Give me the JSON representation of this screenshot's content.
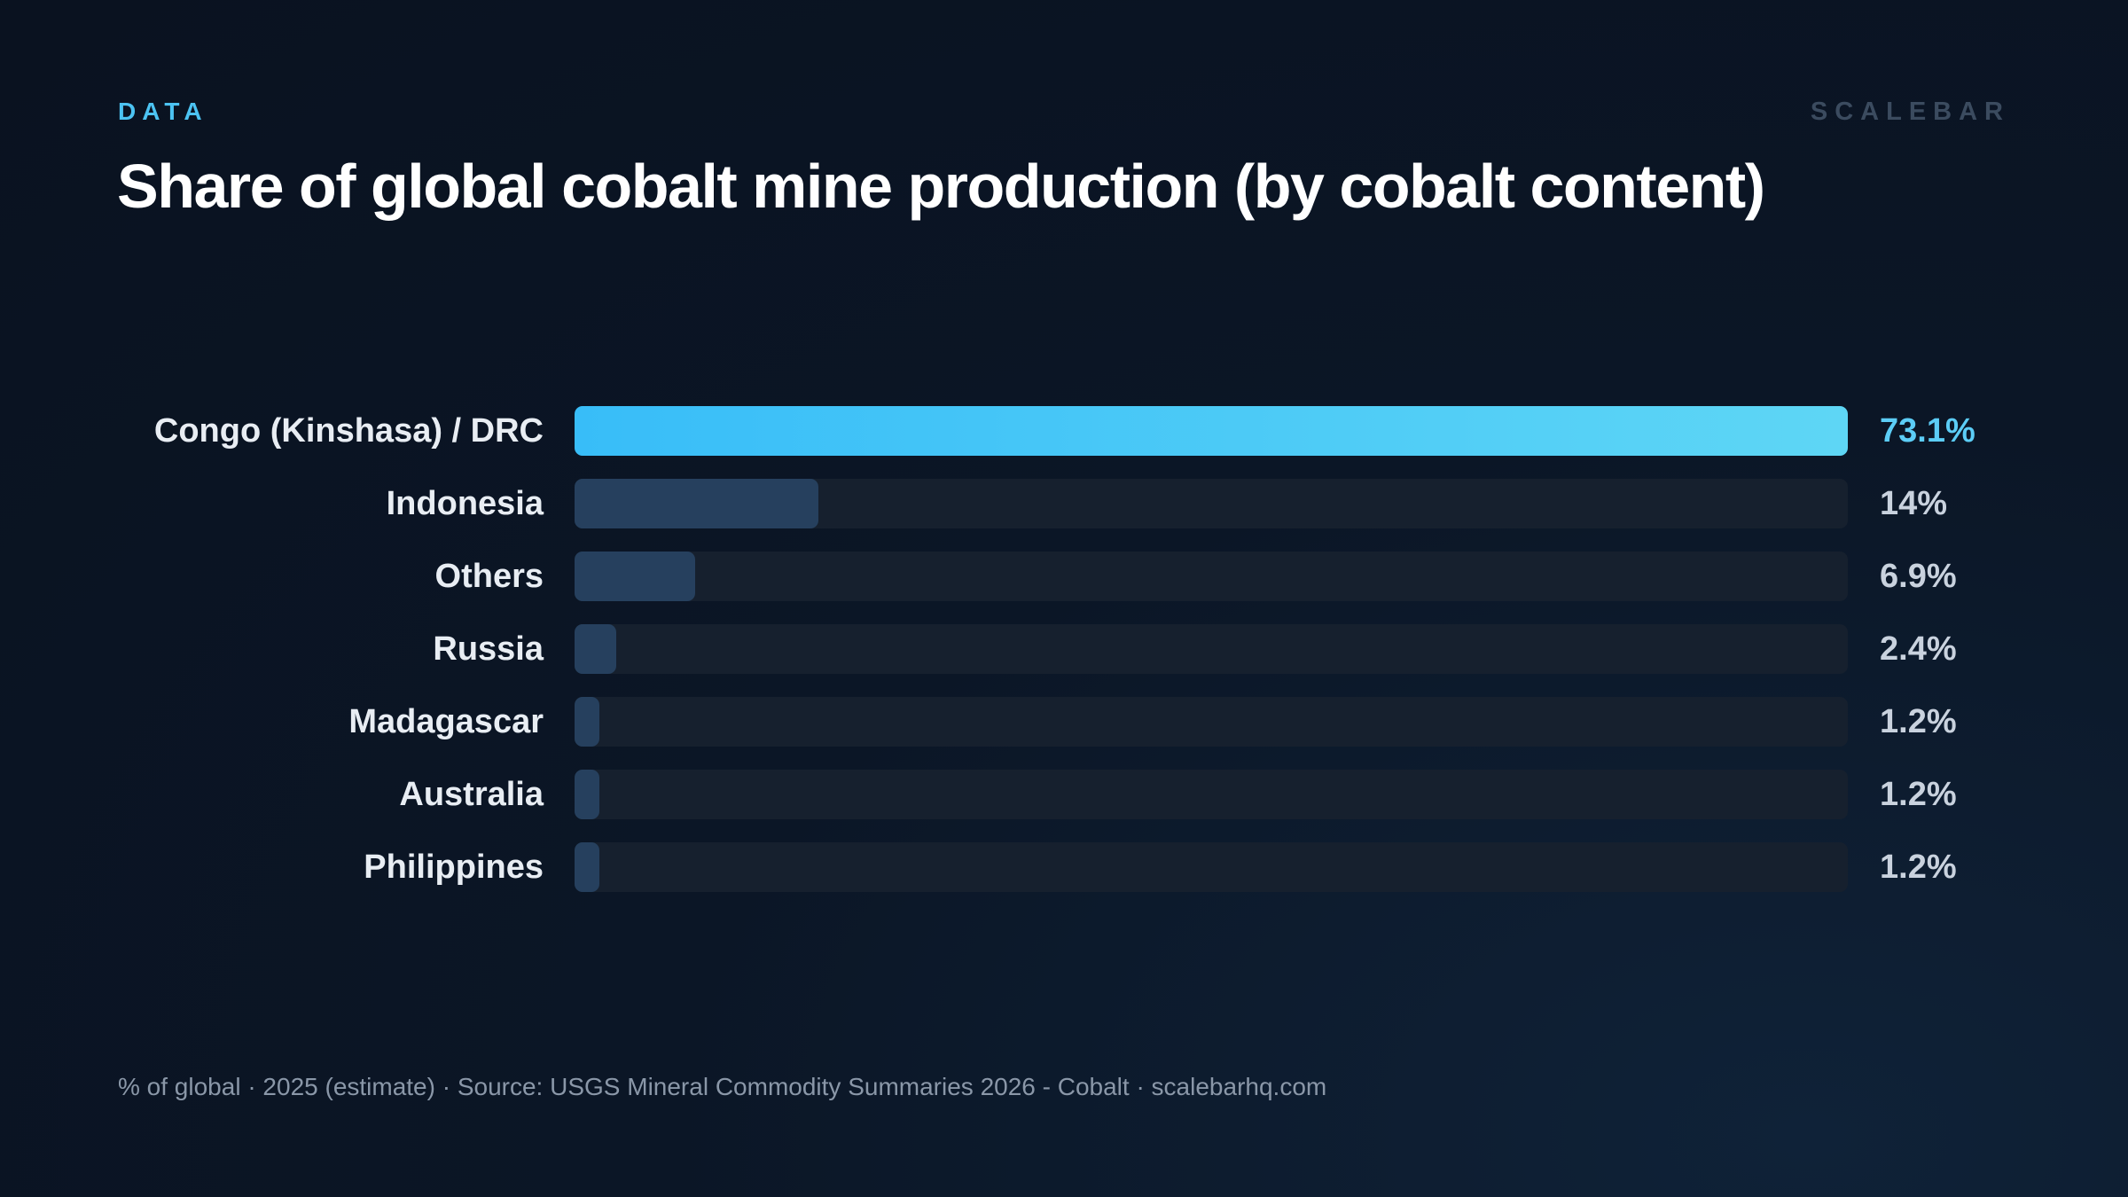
{
  "header": {
    "kicker": "DATA",
    "brand": "SCALEBAR",
    "title": "Share of global cobalt mine production (by cobalt content)"
  },
  "chart_data": {
    "type": "bar",
    "orientation": "horizontal",
    "title": "Share of global cobalt mine production (by cobalt content)",
    "xlim": [
      0,
      73.1
    ],
    "categories": [
      "Congo (Kinshasa) / DRC",
      "Indonesia",
      "Others",
      "Russia",
      "Madagascar",
      "Australia",
      "Philippines"
    ],
    "values": [
      73.1,
      14,
      6.9,
      2.4,
      1.2,
      1.2,
      1.2
    ],
    "value_labels": [
      "73.1%",
      "14%",
      "6.9%",
      "2.4%",
      "1.2%",
      "1.2%",
      "1.2%"
    ],
    "highlight_color": "#38bdf8",
    "bar_color": "#26405e",
    "track_color": "#16202e"
  },
  "footer": {
    "note": "% of global · 2025 (estimate) · Source: USGS Mineral Commodity Summaries 2026 - Cobalt · scalebarhq.com"
  }
}
